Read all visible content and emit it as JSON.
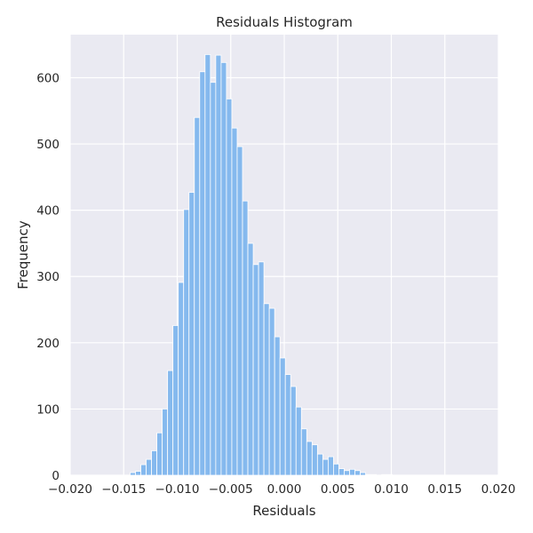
{
  "chart_data": {
    "type": "bar",
    "title": "Residuals Histogram",
    "xlabel": "Residuals",
    "ylabel": "Frequency",
    "xlim": [
      -0.02,
      0.02
    ],
    "ylim": [
      0,
      665
    ],
    "x_ticks": [
      -0.02,
      -0.015,
      -0.01,
      -0.005,
      0.0,
      0.005,
      0.01,
      0.015,
      0.02
    ],
    "x_tick_labels": [
      "−0.020",
      "−0.015",
      "−0.010",
      "−0.005",
      "0.000",
      "0.005",
      "0.010",
      "0.015",
      "0.020"
    ],
    "y_ticks": [
      0,
      100,
      200,
      300,
      400,
      500,
      600
    ],
    "y_tick_labels": [
      "0",
      "100",
      "200",
      "300",
      "400",
      "500",
      "600"
    ],
    "grid": true,
    "colors": {
      "bar": "#85b9ee",
      "background": "#eaeaf2",
      "grid": "#ffffff"
    },
    "bin_width": 0.0005,
    "bins": [
      {
        "x": -0.0144,
        "value": 4
      },
      {
        "x": -0.0139,
        "value": 6
      },
      {
        "x": -0.0134,
        "value": 16
      },
      {
        "x": -0.0129,
        "value": 24
      },
      {
        "x": -0.0124,
        "value": 37
      },
      {
        "x": -0.0119,
        "value": 64
      },
      {
        "x": -0.0114,
        "value": 100
      },
      {
        "x": -0.0109,
        "value": 158
      },
      {
        "x": -0.0104,
        "value": 226
      },
      {
        "x": -0.0099,
        "value": 291
      },
      {
        "x": -0.0094,
        "value": 401
      },
      {
        "x": -0.0089,
        "value": 427
      },
      {
        "x": -0.0084,
        "value": 540
      },
      {
        "x": -0.0079,
        "value": 609
      },
      {
        "x": -0.0074,
        "value": 635
      },
      {
        "x": -0.0069,
        "value": 593
      },
      {
        "x": -0.0064,
        "value": 634
      },
      {
        "x": -0.0059,
        "value": 623
      },
      {
        "x": -0.0054,
        "value": 568
      },
      {
        "x": -0.0049,
        "value": 524
      },
      {
        "x": -0.0044,
        "value": 496
      },
      {
        "x": -0.0039,
        "value": 414
      },
      {
        "x": -0.0034,
        "value": 350
      },
      {
        "x": -0.0029,
        "value": 318
      },
      {
        "x": -0.0024,
        "value": 322
      },
      {
        "x": -0.0019,
        "value": 259
      },
      {
        "x": -0.0014,
        "value": 252
      },
      {
        "x": -0.0009,
        "value": 209
      },
      {
        "x": -0.0004,
        "value": 177
      },
      {
        "x": 0.0001,
        "value": 152
      },
      {
        "x": 0.0006,
        "value": 134
      },
      {
        "x": 0.0011,
        "value": 103
      },
      {
        "x": 0.0016,
        "value": 70
      },
      {
        "x": 0.0021,
        "value": 51
      },
      {
        "x": 0.0026,
        "value": 46
      },
      {
        "x": 0.0031,
        "value": 32
      },
      {
        "x": 0.0036,
        "value": 24
      },
      {
        "x": 0.0041,
        "value": 28
      },
      {
        "x": 0.0046,
        "value": 17
      },
      {
        "x": 0.0051,
        "value": 10
      },
      {
        "x": 0.0056,
        "value": 7
      },
      {
        "x": 0.0061,
        "value": 9
      },
      {
        "x": 0.0066,
        "value": 7
      },
      {
        "x": 0.0071,
        "value": 4
      },
      {
        "x": 0.0076,
        "value": 1
      },
      {
        "x": 0.0081,
        "value": 1
      },
      {
        "x": 0.0086,
        "value": 0
      },
      {
        "x": 0.0091,
        "value": 1
      },
      {
        "x": 0.0096,
        "value": 1
      }
    ]
  }
}
